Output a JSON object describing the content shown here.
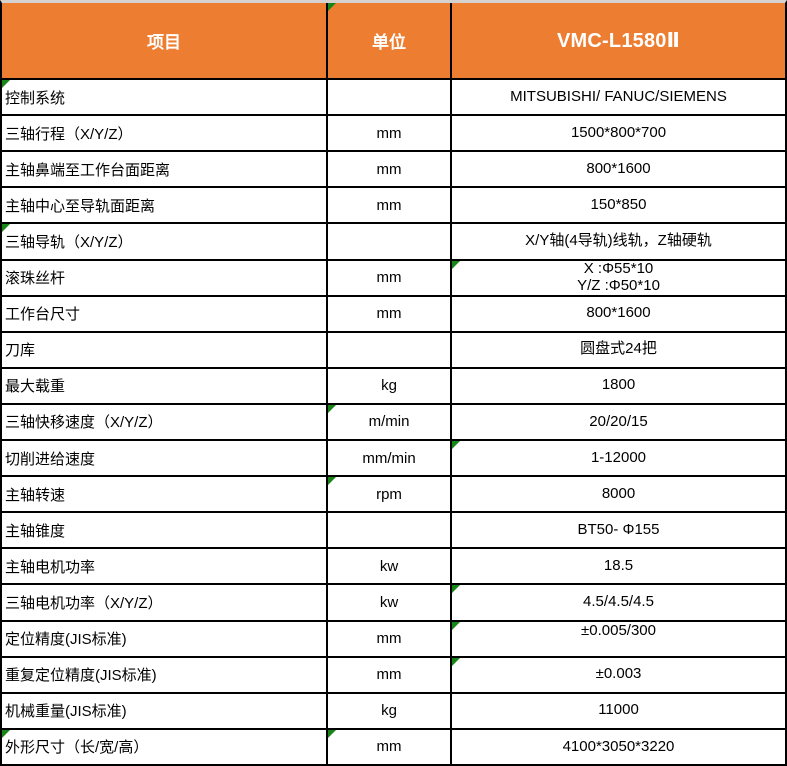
{
  "table": {
    "header": {
      "item": "项目",
      "unit": "单位",
      "model": "VMC-L1580Ⅱ"
    },
    "header_triangles": [
      "unit"
    ],
    "rows": [
      {
        "item": "控制系统",
        "unit": "",
        "value": "MITSUBISHI/ FANUC/SIEMENS",
        "triangles": [
          "item"
        ]
      },
      {
        "item": "三轴行程（X/Y/Z）",
        "unit": "mm",
        "value": "1500*800*700",
        "triangles": []
      },
      {
        "item": "主轴鼻端至工作台面距离",
        "unit": "mm",
        "value": "800*1600",
        "triangles": []
      },
      {
        "item": "主轴中心至导轨面距离",
        "unit": "mm",
        "value": "150*850",
        "triangles": []
      },
      {
        "item": "三轴导轨（X/Y/Z）",
        "unit": "",
        "value": "X/Y轴(4导轨)线轨，Z轴硬轨",
        "triangles": [
          "item"
        ]
      },
      {
        "item": "滚珠丝杆",
        "unit": "mm",
        "value": "X :Φ55*10\nY/Z :Φ50*10",
        "triangles": [
          "value"
        ]
      },
      {
        "item": "工作台尺寸",
        "unit": "mm",
        "value": "800*1600",
        "triangles": []
      },
      {
        "item": "刀库",
        "unit": "",
        "value": "圆盘式24把",
        "triangles": []
      },
      {
        "item": "最大载重",
        "unit": "kg",
        "value": "1800",
        "triangles": []
      },
      {
        "item": "三轴快移速度（X/Y/Z）",
        "unit": "m/min",
        "value": "20/20/15",
        "triangles": [
          "unit"
        ]
      },
      {
        "item": "切削进给速度",
        "unit": "mm/min",
        "value": "1-12000",
        "triangles": [
          "value"
        ]
      },
      {
        "item": "主轴转速",
        "unit": "rpm",
        "value": "8000",
        "triangles": [
          "unit"
        ]
      },
      {
        "item": "主轴锥度",
        "unit": "",
        "value": "BT50- Φ155",
        "triangles": []
      },
      {
        "item": "主轴电机功率",
        "unit": "kw",
        "value": "18.5",
        "triangles": []
      },
      {
        "item": "三轴电机功率（X/Y/Z）",
        "unit": "kw",
        "value": "4.5/4.5/4.5",
        "triangles": [
          "value"
        ]
      },
      {
        "item": "定位精度(JIS标准)",
        "unit": "mm",
        "value": "±0.005/300",
        "triangles": [
          "value"
        ],
        "value_align": "top"
      },
      {
        "item": "重复定位精度(JIS标准)",
        "unit": "mm",
        "value": "±0.003",
        "triangles": [
          "value"
        ]
      },
      {
        "item": "机械重量(JIS标准)",
        "unit": "kg",
        "value": "11000",
        "triangles": []
      },
      {
        "item": "外形尺寸（长/宽/高）",
        "unit": "mm",
        "value": "4100*3050*3220",
        "triangles": [
          "item",
          "unit"
        ]
      }
    ]
  },
  "colors": {
    "header_bg": "#ED7D31",
    "header_text": "#FFFFFF",
    "grid_line": "#000000",
    "indicator_green": "#178517",
    "top_edge": "#D6D2CF"
  }
}
